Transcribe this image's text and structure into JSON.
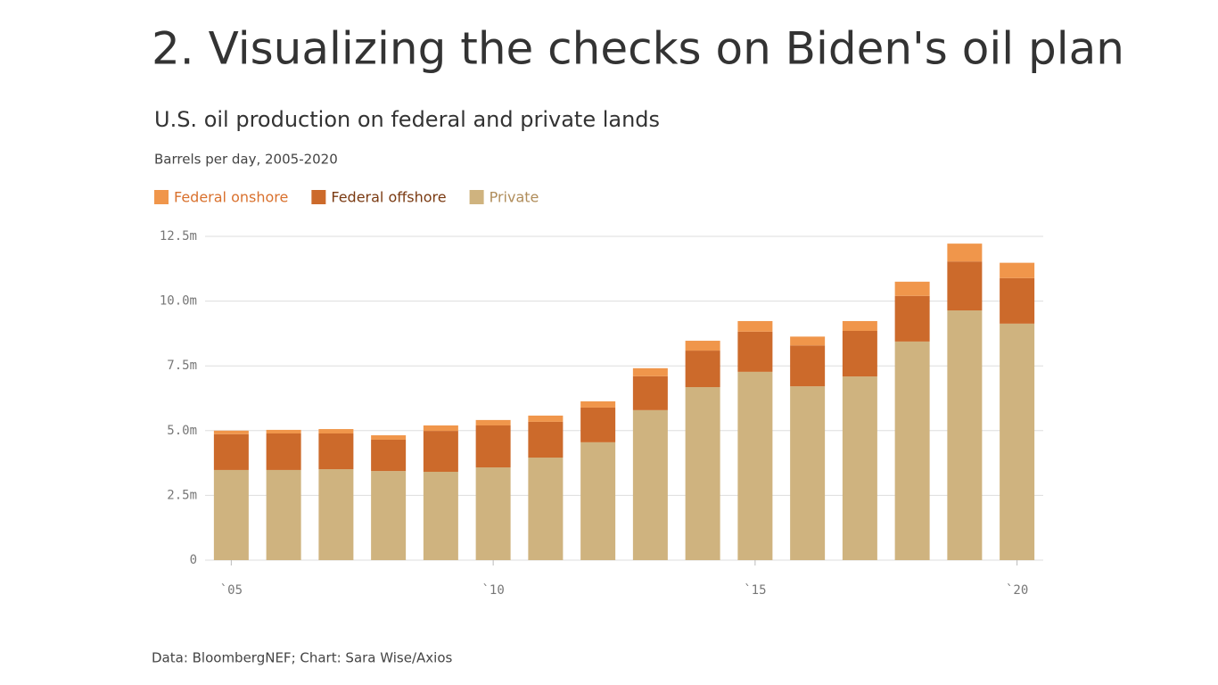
{
  "header": {
    "title": "2. Visualizing the checks on Biden's oil plan"
  },
  "chart_data": {
    "type": "stacked-bar",
    "title": "U.S. oil production on federal and private lands",
    "subtitle": "Barrels per day, 2005-2020",
    "categories": [
      "`05",
      null,
      null,
      null,
      null,
      "`10",
      null,
      null,
      null,
      null,
      "`15",
      null,
      null,
      null,
      null,
      "`20"
    ],
    "series": [
      {
        "name": "Federal onshore",
        "color": "#f0964b",
        "values": [
          0.14,
          0.14,
          0.17,
          0.17,
          0.21,
          0.21,
          0.24,
          0.24,
          0.31,
          0.38,
          0.41,
          0.34,
          0.38,
          0.55,
          0.69,
          0.59
        ]
      },
      {
        "name": "Federal offshore",
        "color": "#cc6a2b",
        "values": [
          1.38,
          1.41,
          1.38,
          1.21,
          1.58,
          1.62,
          1.38,
          1.34,
          1.31,
          1.41,
          1.55,
          1.58,
          1.76,
          1.76,
          1.89,
          1.76
        ]
      },
      {
        "name": "Private",
        "color": "#cfb37f",
        "values": [
          3.48,
          3.48,
          3.51,
          3.44,
          3.41,
          3.58,
          3.96,
          4.55,
          5.79,
          6.68,
          7.27,
          6.71,
          7.09,
          8.44,
          9.64,
          9.13
        ]
      }
    ],
    "ylim": [
      0,
      12.5
    ],
    "yticks": [
      0,
      {
        "value": 2.5,
        "label": "2.5m"
      },
      {
        "value": 5,
        "label": "5.0m"
      },
      {
        "value": 7.5,
        "label": "7.5m"
      },
      {
        "value": 10,
        "label": "10.0m"
      },
      {
        "value": 12.5,
        "label": "12.5m"
      }
    ],
    "grid": true
  },
  "footer": "Data: BloombergNEF; Chart: Sara Wise/Axios"
}
